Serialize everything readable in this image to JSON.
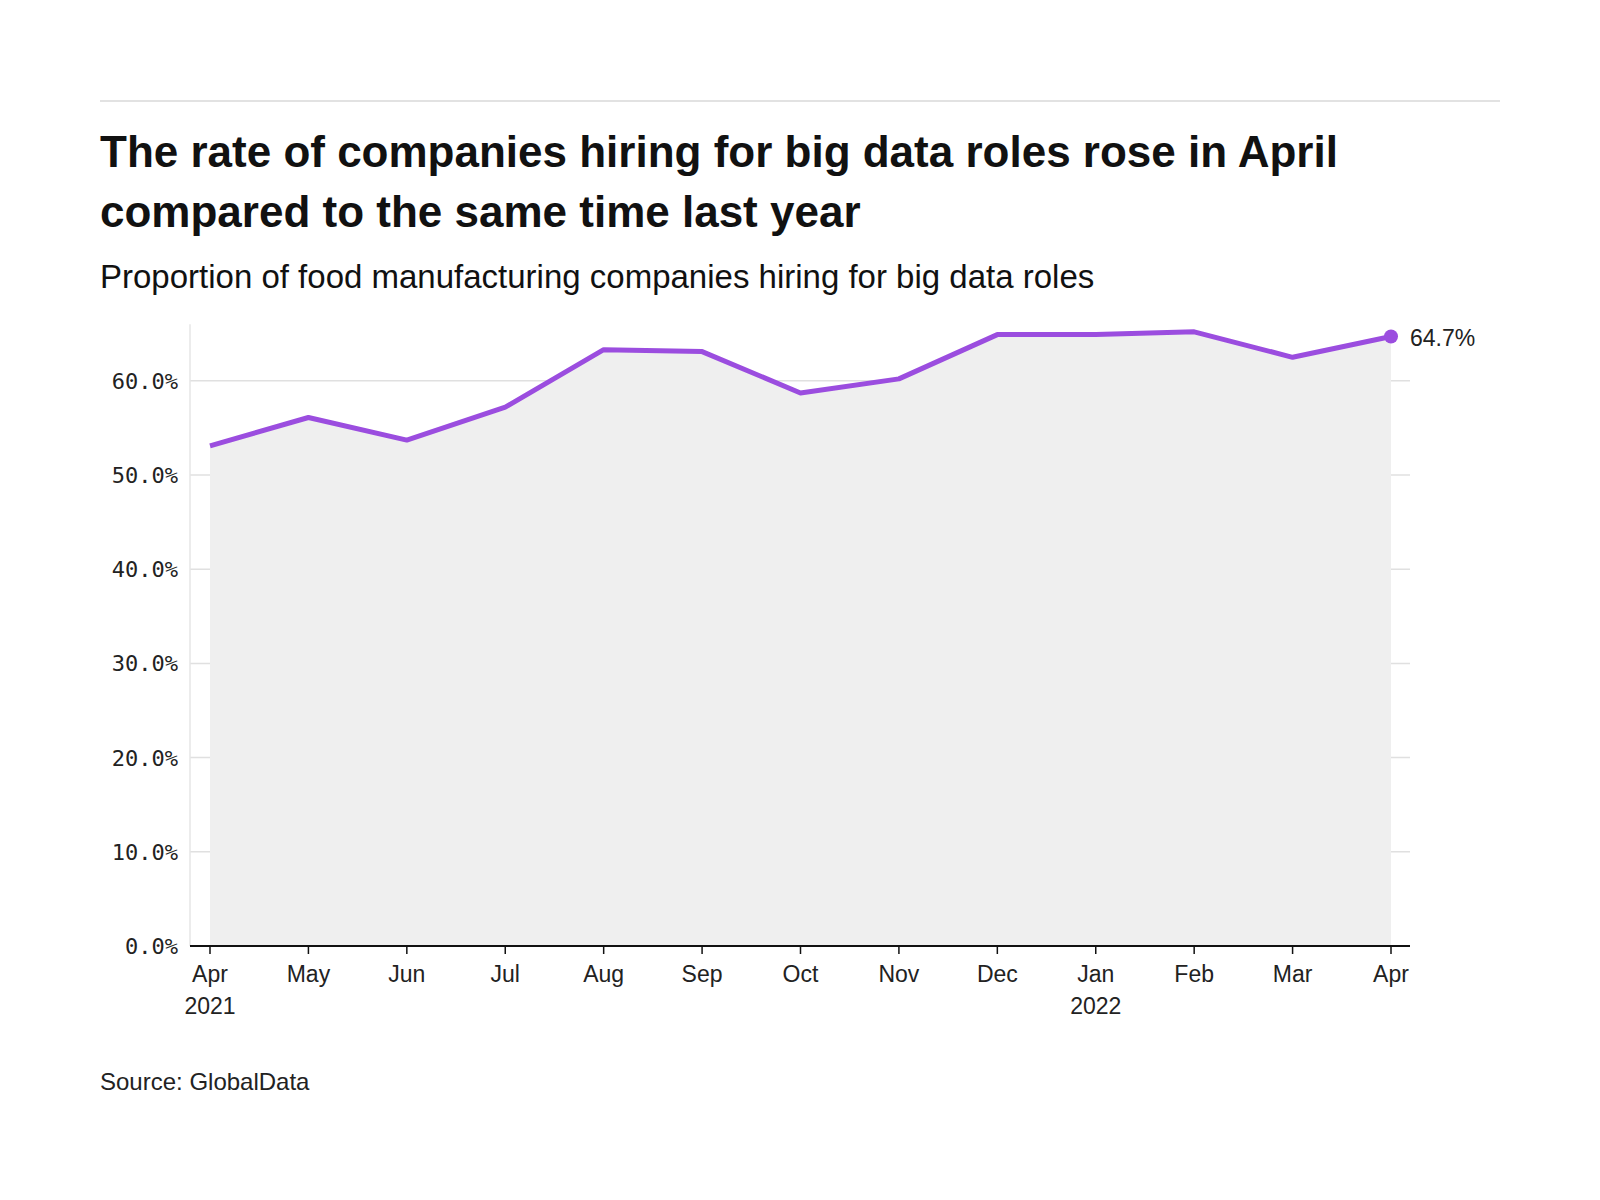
{
  "chart_data": {
    "type": "line",
    "title": "The rate of companies hiring for big data roles rose in April compared to the same time last year",
    "subtitle": "Proportion of food manufacturing companies hiring for big data roles",
    "source": "Source: GlobalData",
    "categories": [
      "Apr 2021",
      "May",
      "Jun",
      "Jul",
      "Aug",
      "Sep",
      "Oct",
      "Nov",
      "Dec",
      "Jan 2022",
      "Feb",
      "Mar",
      "Apr"
    ],
    "values": [
      53.1,
      56.1,
      53.7,
      57.2,
      63.3,
      63.1,
      58.7,
      60.2,
      64.9,
      64.9,
      65.2,
      62.5,
      64.7
    ],
    "value_labels": [
      null,
      null,
      null,
      null,
      null,
      null,
      null,
      null,
      null,
      null,
      null,
      null,
      "64.7%"
    ],
    "color": "#9b4ddf",
    "ylim": [
      0,
      66
    ],
    "yticks": [
      {
        "value": 0,
        "label": "0.0%"
      },
      {
        "value": 10,
        "label": "10.0%"
      },
      {
        "value": 20,
        "label": "20.0%"
      },
      {
        "value": 30,
        "label": "30.0%"
      },
      {
        "value": 40,
        "label": "40.0%"
      },
      {
        "value": 50,
        "label": "50.0%"
      },
      {
        "value": 60,
        "label": "60.0%"
      }
    ],
    "grid": true
  }
}
